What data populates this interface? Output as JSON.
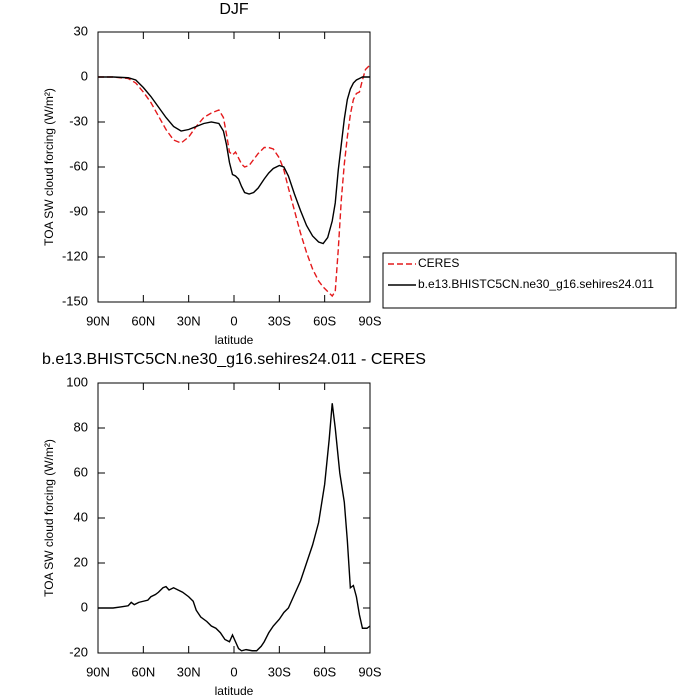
{
  "chart_data": [
    {
      "type": "line",
      "title": "DJF",
      "xlabel": "latitude",
      "ylabel": "TOA SW cloud forcing (W/m²)",
      "x": [
        90,
        80,
        70,
        65,
        60,
        55,
        50,
        45,
        40,
        35,
        30,
        25,
        20,
        15,
        10,
        7,
        5,
        3,
        1,
        -1,
        -3,
        -5,
        -7,
        -10,
        -13,
        -16,
        -20,
        -23,
        -26,
        -30,
        -33,
        -36,
        -40,
        -44,
        -48,
        -52,
        -56,
        -59,
        -62,
        -65,
        -67,
        -69,
        -71,
        -73,
        -75,
        -77,
        -79,
        -81,
        -83,
        -85,
        -87,
        -90
      ],
      "series": [
        {
          "name": "CERES",
          "color": "#e41a1c",
          "linestyle": "dashed",
          "values": [
            0,
            0,
            -1,
            -4,
            -10,
            -17,
            -26,
            -35,
            -42,
            -44,
            -40,
            -33,
            -27,
            -24,
            -22,
            -27,
            -38,
            -50,
            -52,
            -50,
            -54,
            -58,
            -60,
            -59,
            -55,
            -51,
            -47,
            -47,
            -48,
            -54,
            -62,
            -74,
            -89,
            -104,
            -117,
            -128,
            -136,
            -140,
            -143,
            -146,
            -143,
            -115,
            -82,
            -58,
            -40,
            -25,
            -15,
            -11,
            -10,
            -2,
            5,
            8
          ]
        },
        {
          "name": "b.e13.BHISTC5CN.ne30_g16.sehires24.011",
          "color": "#000000",
          "linestyle": "solid",
          "values": [
            0,
            0,
            -0.5,
            -2,
            -7,
            -13,
            -20,
            -27,
            -33,
            -36,
            -35,
            -33,
            -31,
            -30,
            -31,
            -36,
            -45,
            -57,
            -65,
            -66,
            -68,
            -73,
            -77,
            -78,
            -77,
            -74,
            -68,
            -64,
            -61,
            -59,
            -60,
            -66,
            -78,
            -89,
            -99,
            -106,
            -110,
            -111,
            -107,
            -96,
            -84,
            -62,
            -45,
            -28,
            -15,
            -8,
            -4,
            -2,
            -1,
            0,
            0,
            0
          ]
        }
      ],
      "xlim": [
        90,
        -90
      ],
      "xticks": [
        {
          "value": 90,
          "label": "90N"
        },
        {
          "value": 60,
          "label": "60N"
        },
        {
          "value": 30,
          "label": "30N"
        },
        0,
        {
          "value": -30,
          "label": "30S"
        },
        {
          "value": -60,
          "label": "60S"
        },
        {
          "value": -90,
          "label": "90S"
        }
      ],
      "ylim": [
        -150,
        30
      ],
      "yticks": [
        30,
        0,
        -30,
        -60,
        -90,
        -120,
        -150
      ],
      "legend": "right"
    },
    {
      "type": "line",
      "title": "b.e13.BHISTC5CN.ne30_g16.sehires24.011 - CERES",
      "xlabel": "latitude",
      "ylabel": "TOA SW cloud forcing (W/m²)",
      "x": [
        90,
        80,
        75,
        70,
        68,
        66,
        63,
        60,
        57,
        55,
        52,
        50,
        47,
        45,
        43,
        40,
        37,
        34,
        30,
        27,
        25,
        22,
        18,
        15,
        12,
        9,
        6,
        3,
        1,
        -1,
        -3,
        -5,
        -8,
        -12,
        -15,
        -18,
        -20,
        -23,
        -26,
        -30,
        -33,
        -36,
        -40,
        -44,
        -48,
        -52,
        -56,
        -60,
        -63,
        -65,
        -67,
        -70,
        -73,
        -75,
        -77,
        -79,
        -81,
        -83,
        -85,
        -88,
        -90
      ],
      "values": [
        0,
        0,
        0.5,
        1,
        2.5,
        1.5,
        2.5,
        3,
        3.5,
        5,
        6,
        7,
        9,
        9.5,
        8,
        9,
        8,
        7,
        5,
        3,
        -1,
        -4,
        -6,
        -8,
        -9,
        -11,
        -14,
        -15,
        -12,
        -15,
        -18,
        -19,
        -18.5,
        -19,
        -19,
        -17,
        -15,
        -11,
        -8,
        -5,
        -2,
        0,
        6,
        12,
        20,
        28,
        38,
        55,
        75,
        91,
        80,
        60,
        47,
        30,
        9,
        10,
        5,
        -3,
        -9,
        -9,
        -8
      ],
      "color": "#000000",
      "xlim": [
        90,
        -90
      ],
      "xticks": [
        {
          "value": 90,
          "label": "90N"
        },
        {
          "value": 60,
          "label": "60N"
        },
        {
          "value": 30,
          "label": "30N"
        },
        0,
        {
          "value": -30,
          "label": "30S"
        },
        {
          "value": -60,
          "label": "60S"
        },
        {
          "value": -90,
          "label": "90S"
        }
      ],
      "ylim": [
        -20,
        100
      ],
      "yticks": [
        -20,
        0,
        20,
        40,
        60,
        80,
        100
      ]
    }
  ]
}
